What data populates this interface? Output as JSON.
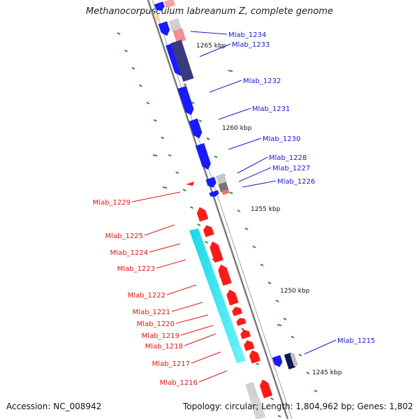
{
  "header": {
    "title": "Methanocorpusculum labreanum Z, complete genome"
  },
  "footer": {
    "accession": "Accession: NC_008942",
    "summary": "Topology: circular; Length: 1,804,962 bp; Genes: 1,802"
  },
  "colors": {
    "forward_gene": "#1a1aff",
    "reverse_gene": "#ff1a1a",
    "highlight_region": "#22e8f0",
    "dark_feature": "#3a3a80",
    "backbone": "#7a7a7a",
    "tick_mark": "#2f8f2f",
    "forward_label": "#1a1acc",
    "reverse_label": "#e01515"
  },
  "scale_labels": [
    "1265 kbp",
    "1260 kbp",
    "1255 kbp",
    "1250 kbp",
    "1245 kbp"
  ],
  "forward_genes": [
    "Mlab_1234",
    "Mlab_1233",
    "Mlab_1232",
    "Mlab_1231",
    "Mlab_1230",
    "Mlab_1228",
    "Mlab_1227",
    "Mlab_1226",
    "Mlab_1215"
  ],
  "reverse_genes": [
    "Mlab_1229",
    "Mlab_1225",
    "Mlab_1224",
    "Mlab_1223",
    "Mlab_1222",
    "Mlab_1221",
    "Mlab_1220",
    "Mlab_1219",
    "Mlab_1218",
    "Mlab_1217",
    "Mlab_1216"
  ]
}
